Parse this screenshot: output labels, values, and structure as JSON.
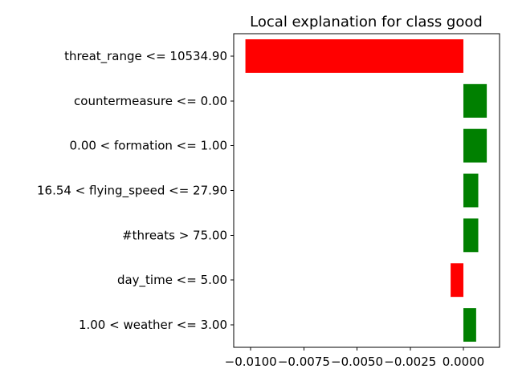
{
  "chart_data": {
    "type": "bar",
    "orientation": "horizontal",
    "title": "Local explanation for class good",
    "xlabel": "",
    "ylabel": "",
    "categories": [
      "threat_range <= 10534.90",
      "countermeasure <= 0.00",
      "0.00 < formation <= 1.00",
      "16.54 < flying_speed <= 27.90",
      "#threats > 75.00",
      "day_time <= 5.00",
      "1.00 < weather <= 3.00"
    ],
    "values": [
      -0.01025,
      0.0011,
      0.0011,
      0.0007,
      0.0007,
      -0.0006,
      0.0006
    ],
    "xlim": [
      -0.0108,
      0.0017
    ],
    "xticks": [
      -0.01,
      -0.0075,
      -0.005,
      -0.0025,
      0.0
    ],
    "xtick_labels": [
      "−0.0100",
      "−0.0075",
      "−0.0050",
      "−0.0025",
      "0.0000"
    ],
    "grid": false,
    "colors": {
      "positive": "#008000",
      "negative": "#ff0000"
    }
  }
}
